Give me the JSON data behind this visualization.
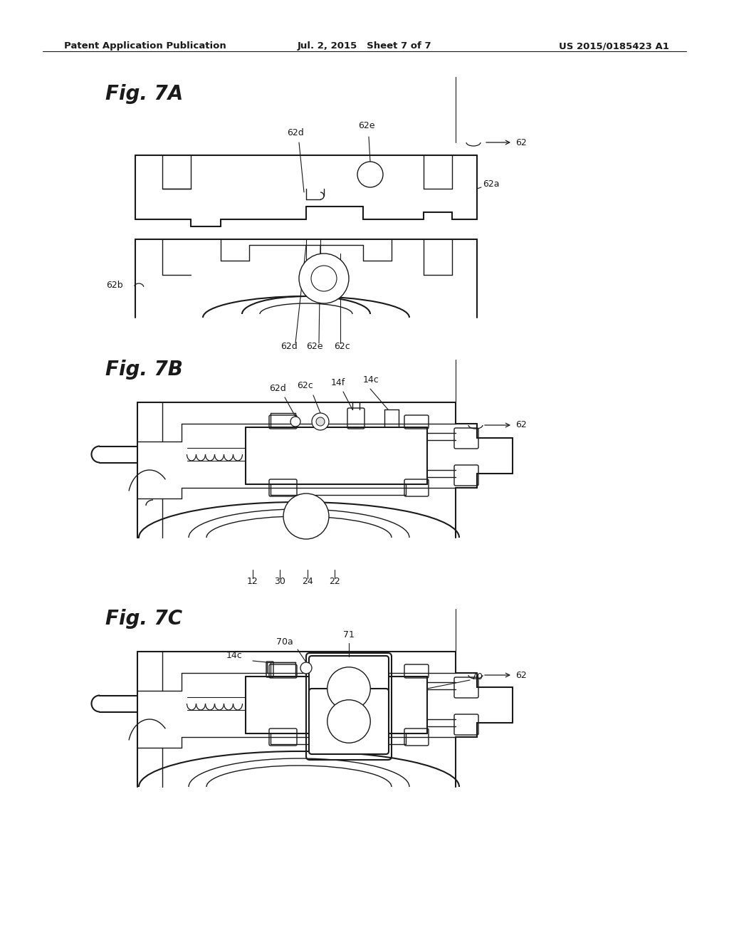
{
  "header_left": "Patent Application Publication",
  "header_mid": "Jul. 2, 2015   Sheet 7 of 7",
  "header_right": "US 2015/0185423 A1",
  "fig7a_label": "Fig. 7A",
  "fig7b_label": "Fig. 7B",
  "fig7c_label": "Fig. 7C",
  "bg_color": "#ffffff",
  "line_color": "#1a1a1a",
  "header_fontsize": 9.5,
  "figlabel_fontsize": 20,
  "annot_fontsize": 9
}
